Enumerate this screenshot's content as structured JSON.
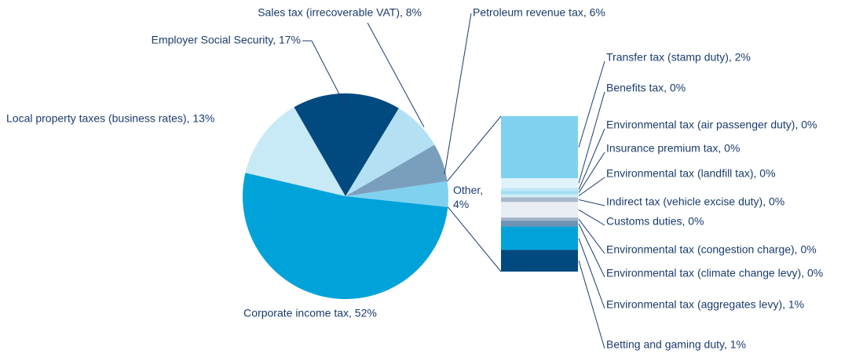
{
  "chart_data": {
    "type": "pie",
    "categories": [
      "Corporate income tax, 52%",
      "Local property taxes (business rates), 13%",
      "Employer Social Security, 17%",
      "Sales tax (irrecoverable VAT), 8%",
      "Petroleum revenue tax, 6%",
      "Other, 4%"
    ],
    "values": [
      52,
      13,
      17,
      8,
      6,
      4
    ],
    "colors": [
      "#00a3d9",
      "#c8eaf7",
      "#004a80",
      "#b3e1f3",
      "#7a9fbd",
      "#7fd1ef"
    ],
    "breakdown": {
      "categories": [
        "Transfer tax (stamp duty), 2%",
        "Benefits tax, 0%",
        "Environmental tax (air passenger duty), 0%",
        "Insurance premium tax, 0%",
        "Environmental tax (landfill tax), 0%",
        "Indirect tax (vehicle excise duty), 0%",
        "Customs duties, 0%",
        "Environmental tax (congestion charge), 0%",
        "Environmental tax (climate change levy), 0%",
        "Environmental tax (aggregates levy), 1%",
        "Betting and gaming duty, 1%"
      ],
      "values": [
        1.6,
        0.25,
        0.08,
        0.08,
        0.08,
        0.12,
        0.4,
        0.08,
        0.15,
        0.6,
        0.56
      ],
      "colors": [
        "#7fd1ef",
        "#e0f3fb",
        "#c0e6f5",
        "#a0dcf1",
        "#d0eef8",
        "#a8b8cc",
        "#e8eef3",
        "#9fb4c8",
        "#6f93b4",
        "#00a3d9",
        "#004a80"
      ]
    }
  }
}
